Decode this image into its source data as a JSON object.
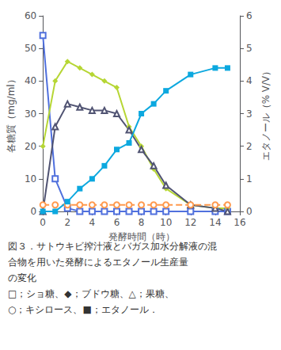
{
  "chart_data": {
    "type": "line",
    "xlabel": "発酵時間（時）",
    "ylabel": "各糖質（mg/ml）",
    "y2label": "エタノール（% V/V）",
    "x": [
      0,
      1,
      2,
      3,
      4,
      5,
      6,
      7,
      8,
      9,
      10,
      12,
      14,
      15
    ],
    "series": [
      {
        "values": [
          54,
          10,
          1,
          0,
          0,
          0,
          0,
          0,
          0,
          0,
          0,
          0,
          0,
          0
        ],
        "marker": "square-open",
        "line_style": "solid"
      },
      {
        "values": [
          20,
          40,
          46,
          44,
          42,
          40,
          38,
          26,
          20,
          13,
          7,
          2,
          1,
          1
        ],
        "marker": "diamond",
        "line_style": "solid"
      },
      {
        "values": [
          0,
          26,
          33,
          32,
          31,
          31,
          30,
          25,
          19,
          14,
          8,
          2,
          1,
          0
        ],
        "marker": "triangle-open",
        "line_style": "solid"
      },
      {
        "values": [
          2,
          2,
          2,
          2,
          2,
          2,
          2,
          2,
          2,
          2,
          2,
          2,
          2,
          2
        ],
        "marker": "circle-open",
        "line_style": "dashed"
      },
      {
        "values": [
          0,
          0,
          0.3,
          0.7,
          1.0,
          1.4,
          1.9,
          2.1,
          3.0,
          3.3,
          3.7,
          4.2,
          4.4,
          4.4
        ],
        "marker": "square",
        "line_style": "solid",
        "axis": "y2"
      }
    ],
    "xlim": [
      0,
      16
    ],
    "xticks": [
      0,
      2,
      4,
      6,
      8,
      10,
      12,
      14,
      16
    ],
    "ylim": [
      0,
      60
    ],
    "yticks": [
      0,
      10,
      20,
      30,
      40,
      50,
      60
    ],
    "y2lim": [
      0,
      6
    ],
    "y2ticks": [
      0,
      1,
      2,
      3,
      4,
      5,
      6
    ],
    "grid": false,
    "annotations": [
      "図３．サトウキビ搾汁液とバガス加水分解液の混",
      "合物を用いた発酵によるエタノール生産量",
      "の変化",
      "□；ショ糖、◆；ブドウ糖、△；果糖、",
      "○；キシロース、■；エタノール．"
    ]
  }
}
